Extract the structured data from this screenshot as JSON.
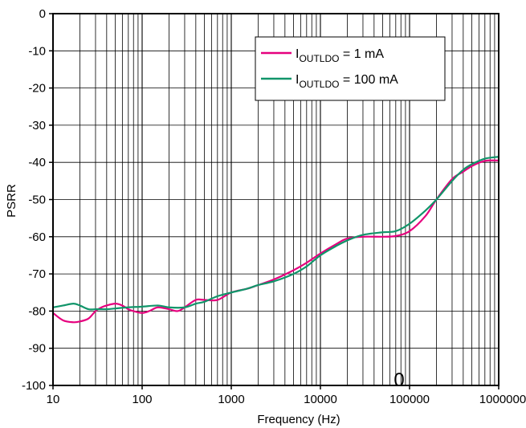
{
  "chart_data": {
    "type": "line",
    "x_scale": "log",
    "xlabel": "Frequency (Hz)",
    "ylabel": "PSRR",
    "xlim": [
      10,
      1000000
    ],
    "ylim": [
      -100,
      0
    ],
    "grid": true,
    "legend_position": "top-right",
    "x_ticks": [
      "10",
      "100",
      "1000",
      "10000",
      "100000",
      "1000000"
    ],
    "y_ticks": [
      "0",
      "-10",
      "-20",
      "-30",
      "-40",
      "-50",
      "-60",
      "-70",
      "-80",
      "-90",
      "-100"
    ],
    "annotation": "0",
    "series": [
      {
        "name": "I",
        "name_sub": "OUTLDO",
        "name_suffix": " = 1 mA",
        "color": "#e6007e",
        "x": [
          10,
          13,
          17,
          20,
          25,
          30,
          35,
          40,
          50,
          60,
          70,
          80,
          100,
          120,
          150,
          200,
          250,
          300,
          400,
          500,
          700,
          1000,
          1500,
          2000,
          3000,
          5000,
          7000,
          10000,
          15000,
          20000,
          30000,
          50000,
          70000,
          100000,
          150000,
          200000,
          300000,
          400000,
          500000,
          700000,
          1000000
        ],
        "y": [
          -80.5,
          -82.5,
          -83,
          -82.8,
          -82,
          -80,
          -79,
          -78.5,
          -78,
          -78.5,
          -79.5,
          -80,
          -80.5,
          -80,
          -79,
          -79.5,
          -80,
          -79,
          -77,
          -77,
          -77,
          -75,
          -74,
          -73,
          -71.5,
          -69,
          -67,
          -64.5,
          -62,
          -60.5,
          -60,
          -60,
          -59.8,
          -58.5,
          -54.5,
          -50,
          -44.5,
          -42.5,
          -41,
          -39.6,
          -39.5
        ]
      },
      {
        "name": "I",
        "name_sub": "OUTLDO",
        "name_suffix": " = 100  mA",
        "color": "#11956a",
        "x": [
          10,
          13,
          17,
          20,
          25,
          30,
          40,
          50,
          70,
          100,
          150,
          200,
          300,
          400,
          500,
          700,
          1000,
          1500,
          2000,
          3000,
          5000,
          7000,
          10000,
          15000,
          20000,
          30000,
          50000,
          70000,
          100000,
          150000,
          200000,
          300000,
          400000,
          500000,
          700000,
          1000000
        ],
        "y": [
          -79,
          -78.5,
          -78,
          -78.5,
          -79.5,
          -79.5,
          -79.5,
          -79.3,
          -79,
          -78.8,
          -78.5,
          -79,
          -79,
          -78,
          -77.5,
          -76,
          -75,
          -74,
          -73,
          -72,
          -70,
          -68,
          -65,
          -62.5,
          -61,
          -59.5,
          -58.8,
          -58.5,
          -56.5,
          -53,
          -50,
          -45,
          -42,
          -40.5,
          -39,
          -38.5
        ]
      }
    ]
  }
}
